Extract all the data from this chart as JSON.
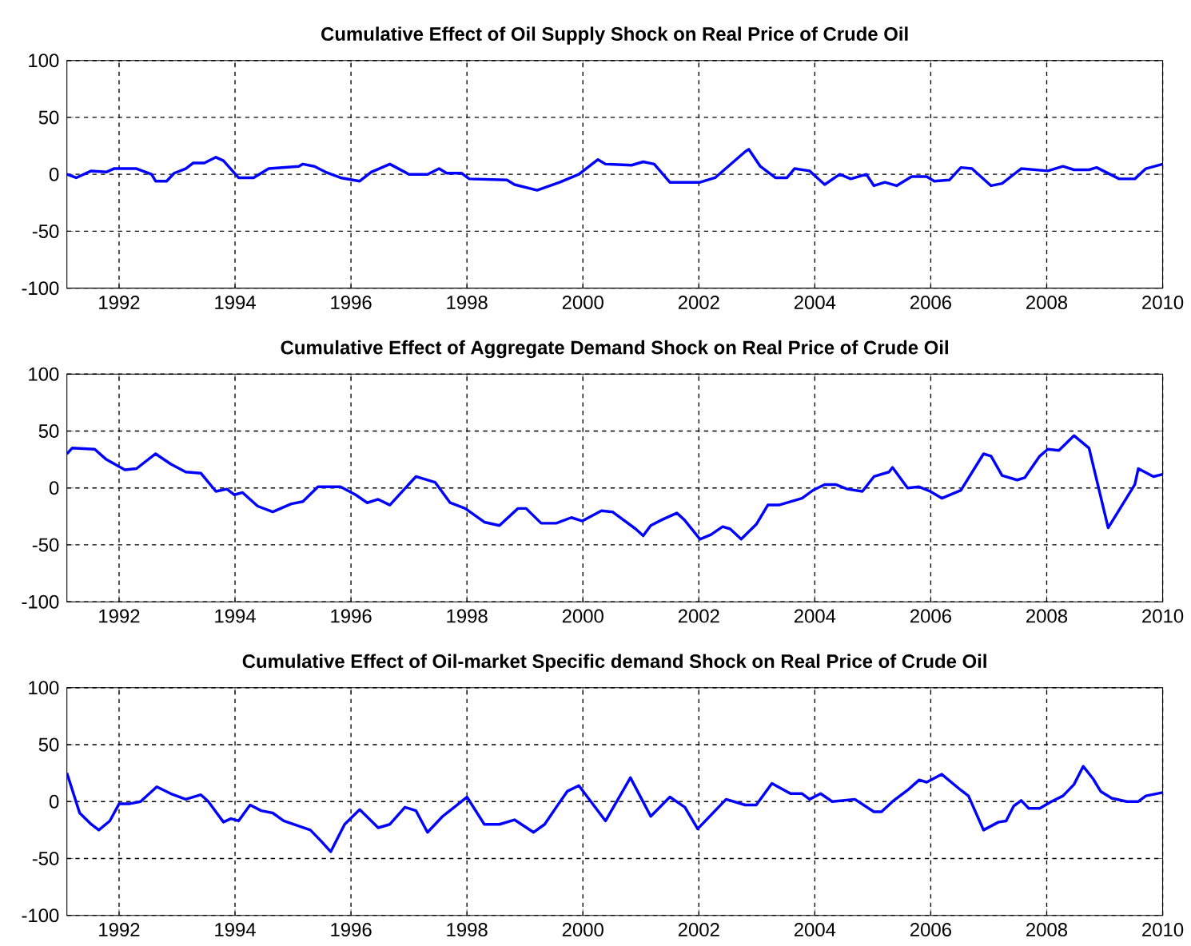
{
  "chart_data": [
    {
      "type": "line",
      "title": "Cumulative Effect of Oil Supply Shock on Real Price of Crude Oil",
      "xlim": [
        1991.1,
        2010
      ],
      "ylim": [
        -100,
        100
      ],
      "xticks": [
        1992,
        1994,
        1996,
        1998,
        2000,
        2002,
        2004,
        2006,
        2008,
        2010
      ],
      "yticks": [
        -100,
        -50,
        0,
        50,
        100
      ],
      "grid": true,
      "line_style": "solid",
      "x": [
        1991.1,
        1991.26,
        1991.52,
        1991.78,
        1991.91,
        1992.3,
        1992.56,
        1992.63,
        1992.82,
        1992.95,
        1993.15,
        1993.28,
        1993.47,
        1993.67,
        1993.8,
        1994.06,
        1994.32,
        1994.58,
        1995.1,
        1995.17,
        1995.37,
        1995.56,
        1995.82,
        1996.15,
        1996.35,
        1996.67,
        1997.0,
        1997.32,
        1997.52,
        1997.65,
        1997.91,
        1998.04,
        1998.69,
        1998.82,
        1999.21,
        1999.6,
        1999.93,
        2000.26,
        2000.39,
        2000.84,
        2001.04,
        2001.23,
        2001.5,
        2002.02,
        2002.28,
        2002.8,
        2002.86,
        2003.06,
        2003.32,
        2003.52,
        2003.65,
        2003.91,
        2004.17,
        2004.43,
        2004.62,
        2004.89,
        2005.02,
        2005.21,
        2005.41,
        2005.67,
        2005.93,
        2006.06,
        2006.32,
        2006.52,
        2006.71,
        2007.04,
        2007.23,
        2007.56,
        2008.02,
        2008.28,
        2008.47,
        2008.73,
        2008.86,
        2009.25,
        2009.52,
        2009.71,
        2010
      ],
      "series": [
        {
          "color": "#0000ff",
          "values": [
            0,
            -3,
            3,
            2,
            5,
            5,
            0,
            -6,
            -6,
            1,
            5,
            10,
            10,
            15,
            12,
            -3,
            -3,
            5,
            7,
            9,
            7,
            2,
            -3,
            -6,
            2,
            9,
            0,
            0,
            5,
            1,
            1,
            -4,
            -5,
            -9,
            -14,
            -7,
            0,
            13,
            9,
            8,
            11,
            9,
            -7,
            -7,
            -3,
            20,
            22,
            7,
            -3,
            -3,
            5,
            3,
            -9,
            0,
            -4,
            0,
            -10,
            -7,
            -10,
            -2,
            -2,
            -6,
            -5,
            6,
            5,
            -10,
            -8,
            5,
            3,
            7,
            4,
            4,
            6,
            -4,
            -4,
            5,
            9
          ]
        }
      ]
    },
    {
      "type": "line",
      "title": "Cumulative Effect of Aggregate Demand Shock on Real Price of Crude Oil",
      "xlim": [
        1991.1,
        2010
      ],
      "ylim": [
        -100,
        100
      ],
      "xticks": [
        1992,
        1994,
        1996,
        1998,
        2000,
        2002,
        2004,
        2006,
        2008,
        2010
      ],
      "yticks": [
        -100,
        -50,
        0,
        50,
        100
      ],
      "grid": true,
      "line_style": "solid",
      "x": [
        1991.1,
        1991.19,
        1991.58,
        1991.78,
        1992.1,
        1992.3,
        1992.63,
        1992.89,
        1993.15,
        1993.41,
        1993.67,
        1993.86,
        1993.99,
        1994.13,
        1994.39,
        1994.65,
        1994.97,
        1995.17,
        1995.43,
        1995.82,
        1996.08,
        1996.28,
        1996.47,
        1996.67,
        1997.12,
        1997.45,
        1997.71,
        1997.97,
        1998.3,
        1998.56,
        1998.88,
        1999.02,
        1999.28,
        1999.54,
        1999.8,
        1999.99,
        2000.32,
        2000.51,
        2000.91,
        2001.04,
        2001.17,
        2001.36,
        2001.62,
        2001.75,
        2002.02,
        2002.21,
        2002.41,
        2002.54,
        2002.73,
        2002.99,
        2003.19,
        2003.38,
        2003.78,
        2003.97,
        2004.17,
        2004.36,
        2004.56,
        2004.82,
        2005.02,
        2005.28,
        2005.34,
        2005.6,
        2005.8,
        2005.99,
        2006.19,
        2006.52,
        2006.91,
        2007.04,
        2007.23,
        2007.49,
        2007.62,
        2007.88,
        2008.02,
        2008.21,
        2008.47,
        2008.73,
        2009.06,
        2009.52,
        2009.58,
        2009.84,
        2010
      ],
      "series": [
        {
          "color": "#0000ff",
          "values": [
            30,
            35,
            34,
            25,
            16,
            17,
            30,
            21,
            14,
            13,
            -3,
            -1,
            -6,
            -4,
            -16,
            -21,
            -14,
            -12,
            1,
            1,
            -6,
            -13,
            -10,
            -15,
            10,
            5,
            -13,
            -18,
            -30,
            -33,
            -18,
            -18,
            -31,
            -31,
            -26,
            -29,
            -20,
            -21,
            -36,
            -42,
            -33,
            -28,
            -22,
            -28,
            -45,
            -41,
            -34,
            -36,
            -45,
            -32,
            -15,
            -15,
            -9,
            -2,
            3,
            3,
            -1,
            -3,
            10,
            14,
            18,
            0,
            1,
            -3,
            -9,
            -2,
            30,
            28,
            11,
            7,
            9,
            28,
            34,
            33,
            46,
            35,
            -35,
            3,
            17,
            10,
            12
          ]
        }
      ]
    },
    {
      "type": "line",
      "title": "Cumulative Effect of Oil-market Specific demand Shock on Real Price of Crude Oil",
      "xlim": [
        1991.1,
        2010
      ],
      "ylim": [
        -100,
        100
      ],
      "xticks": [
        1992,
        1994,
        1996,
        1998,
        2000,
        2002,
        2004,
        2006,
        2008,
        2010
      ],
      "yticks": [
        -100,
        -50,
        0,
        50,
        100
      ],
      "grid": true,
      "line_style": "solid",
      "x": [
        1991.1,
        1991.32,
        1991.52,
        1991.65,
        1991.84,
        1992.0,
        1992.17,
        1992.37,
        1992.65,
        1992.89,
        1993.15,
        1993.41,
        1993.54,
        1993.8,
        1993.93,
        1994.06,
        1994.26,
        1994.45,
        1994.65,
        1994.84,
        1995.3,
        1995.49,
        1995.65,
        1995.89,
        1996.15,
        1996.47,
        1996.67,
        1996.93,
        1997.12,
        1997.32,
        1997.58,
        1997.78,
        1998.0,
        1998.3,
        1998.56,
        1998.82,
        1999.15,
        1999.34,
        1999.54,
        1999.73,
        1999.93,
        2000.39,
        2000.82,
        2001.17,
        2001.5,
        2001.76,
        2001.98,
        2002.47,
        2002.8,
        2002.99,
        2003.26,
        2003.58,
        2003.78,
        2003.91,
        2004.1,
        2004.3,
        2004.69,
        2005.02,
        2005.15,
        2005.34,
        2005.6,
        2005.8,
        2005.93,
        2006.19,
        2006.52,
        2006.65,
        2006.91,
        2007.17,
        2007.3,
        2007.43,
        2007.56,
        2007.69,
        2007.88,
        2008.08,
        2008.28,
        2008.47,
        2008.63,
        2008.8,
        2008.93,
        2009.12,
        2009.38,
        2009.58,
        2009.71,
        2010
      ],
      "series": [
        {
          "color": "#0000ff",
          "values": [
            25,
            -10,
            -20,
            -25,
            -17,
            -2,
            -2,
            0,
            13,
            7,
            2,
            6,
            0,
            -18,
            -15,
            -17,
            -3,
            -8,
            -10,
            -17,
            -25,
            -35,
            -44,
            -20,
            -7,
            -23,
            -20,
            -5,
            -8,
            -27,
            -13,
            -5,
            4,
            -20,
            -20,
            -16,
            -27,
            -20,
            -5,
            9,
            14,
            -17,
            21,
            -13,
            4,
            -5,
            -24,
            2,
            -3,
            -3,
            16,
            7,
            7,
            2,
            7,
            0,
            2,
            -9,
            -9,
            0,
            10,
            19,
            17,
            24,
            10,
            5,
            -25,
            -18,
            -17,
            -4,
            1,
            -6,
            -6,
            0,
            5,
            15,
            31,
            20,
            9,
            3,
            0,
            0,
            5,
            8
          ]
        }
      ]
    }
  ]
}
